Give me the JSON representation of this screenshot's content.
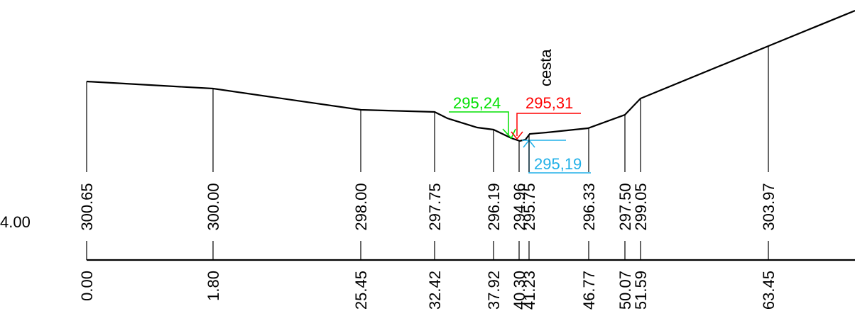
{
  "datum": "4.00",
  "stations": [
    {
      "elevation": "300.65",
      "distance": "0.00"
    },
    {
      "elevation": "300.00",
      "distance": "1.80"
    },
    {
      "elevation": "298.00",
      "distance": "25.45"
    },
    {
      "elevation": "297.75",
      "distance": "32.42"
    },
    {
      "elevation": "296.19",
      "distance": "37.92"
    },
    {
      "elevation": "294.96",
      "distance": "40.30"
    },
    {
      "elevation": "295.75",
      "distance": "41.23"
    },
    {
      "elevation": "296.33",
      "distance": "46.77"
    },
    {
      "elevation": "297.50",
      "distance": "50.07"
    },
    {
      "elevation": "299.05",
      "distance": "51.59"
    },
    {
      "elevation": "303.97",
      "distance": "63.45"
    }
  ],
  "annotations": {
    "left_level": "295,24",
    "right_level": "295,31",
    "bottom_level": "295,19",
    "road": "cesta"
  }
}
